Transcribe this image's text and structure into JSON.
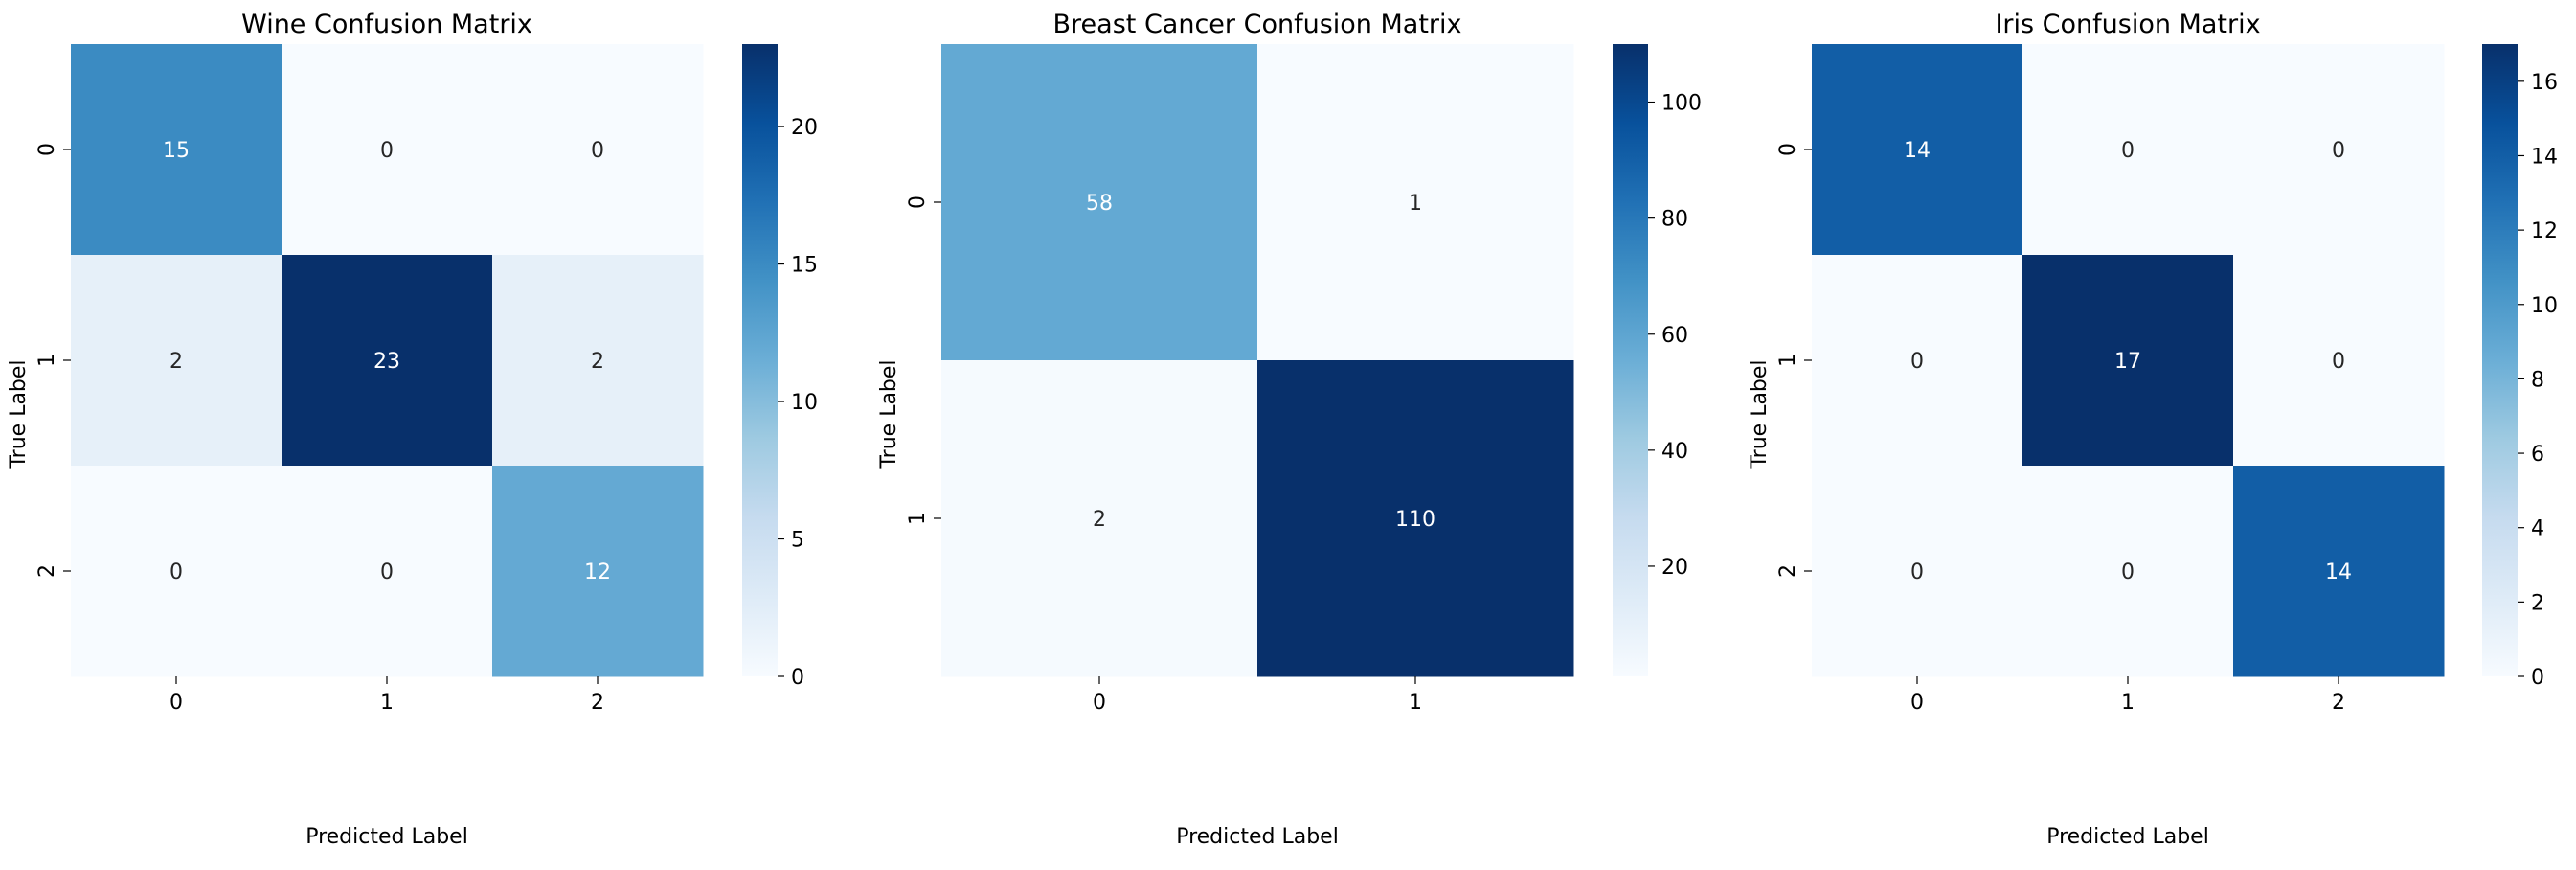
{
  "chart_data": [
    {
      "type": "heatmap",
      "title": "Wine Confusion Matrix",
      "xlabel": "Predicted Label",
      "ylabel": "True Label",
      "x_categories": [
        "0",
        "1",
        "2"
      ],
      "y_categories": [
        "0",
        "1",
        "2"
      ],
      "values": [
        [
          15,
          0,
          0
        ],
        [
          2,
          23,
          2
        ],
        [
          0,
          0,
          12
        ]
      ],
      "colormap": "Blues",
      "colorbar": {
        "vmin": 0,
        "vmax": 23,
        "ticks": [
          0,
          5,
          10,
          15,
          20
        ]
      }
    },
    {
      "type": "heatmap",
      "title": "Breast Cancer Confusion Matrix",
      "xlabel": "Predicted Label",
      "ylabel": "True Label",
      "x_categories": [
        "0",
        "1"
      ],
      "y_categories": [
        "0",
        "1"
      ],
      "values": [
        [
          58,
          1
        ],
        [
          2,
          110
        ]
      ],
      "colormap": "Blues",
      "colorbar": {
        "vmin": 1,
        "vmax": 110,
        "ticks": [
          20,
          40,
          60,
          80,
          100
        ]
      }
    },
    {
      "type": "heatmap",
      "title": "Iris Confusion Matrix",
      "xlabel": "Predicted Label",
      "ylabel": "True Label",
      "x_categories": [
        "0",
        "1",
        "2"
      ],
      "y_categories": [
        "0",
        "1",
        "2"
      ],
      "values": [
        [
          14,
          0,
          0
        ],
        [
          0,
          17,
          0
        ],
        [
          0,
          0,
          14
        ]
      ],
      "colormap": "Blues",
      "colorbar": {
        "vmin": 0,
        "vmax": 17,
        "ticks": [
          0,
          2,
          4,
          6,
          8,
          10,
          12,
          14,
          16
        ]
      }
    }
  ],
  "colors": {
    "blues_scale": [
      "#f7fbff",
      "#deebf7",
      "#c6dbef",
      "#9ecae1",
      "#6baed6",
      "#4292c6",
      "#2171b5",
      "#08519c",
      "#08306b"
    ],
    "dark_text": "#262626",
    "light_text": "#ffffff"
  }
}
